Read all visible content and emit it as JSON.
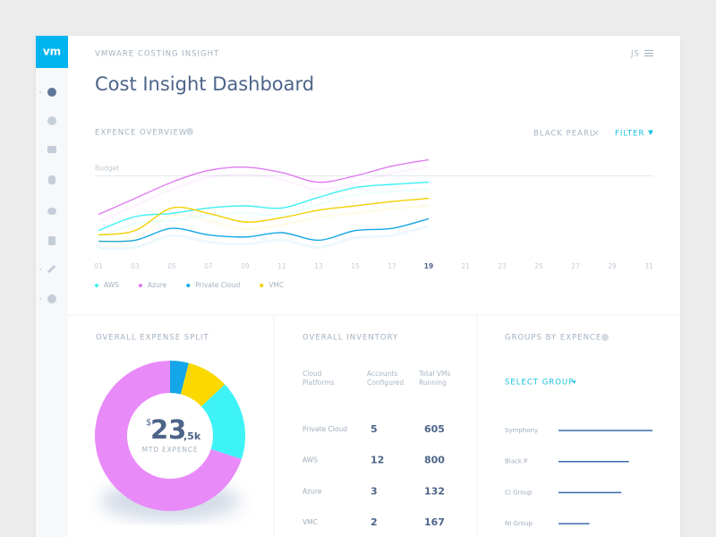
{
  "app": {
    "logo": "vm",
    "name": "VMWARE COSTING INSIGHT",
    "user": "JS",
    "title": "Cost Insight Dashboard"
  },
  "filters": {
    "tag": "BLACK PEARL",
    "button": "FILTER"
  },
  "inventory": {
    "title": "OVERALL INVENTORY",
    "columns": [
      "Cloud Platforms",
      "Accounts Configured",
      "Total VMs Running"
    ],
    "rows": [
      [
        "Private Cloud",
        5,
        605
      ],
      [
        "AWS",
        12,
        800
      ],
      [
        "Azure",
        3,
        132
      ],
      [
        "VMC",
        2,
        167
      ]
    ]
  },
  "chart_data": [
    {
      "type": "line",
      "title": "EXPENCE OVERVIEW",
      "x": [
        1,
        3,
        5,
        7,
        9,
        11,
        13,
        15,
        17,
        19
      ],
      "xlim": [
        1,
        31
      ],
      "xticks": [
        {
          "value": 1,
          "label": "01"
        },
        {
          "value": 3,
          "label": "03"
        },
        {
          "value": 5,
          "label": "05"
        },
        {
          "value": 7,
          "label": "07"
        },
        {
          "value": 9,
          "label": "09"
        },
        11,
        13,
        15,
        17,
        19,
        21,
        23,
        25,
        27,
        29,
        31
      ],
      "highlight_tick": 19,
      "ylim": [
        0,
        100
      ],
      "budget": {
        "label": "Budget",
        "value": 78
      },
      "series": [
        {
          "name": "AWS",
          "color": "#3ef0f2",
          "values": [
            27,
            40,
            43,
            48,
            50,
            48,
            58,
            67,
            70,
            72
          ]
        },
        {
          "name": "Azure",
          "color": "#e07cf0",
          "values": [
            42,
            57,
            72,
            83,
            86,
            81,
            72,
            78,
            87,
            93
          ]
        },
        {
          "name": "Private Cloud",
          "color": "#14a6e2",
          "values": [
            17,
            18,
            29,
            23,
            21,
            25,
            18,
            27,
            29,
            38
          ]
        },
        {
          "name": "VMC",
          "color": "#f2d000",
          "values": [
            23,
            27,
            48,
            43,
            35,
            39,
            46,
            50,
            54,
            57
          ]
        }
      ]
    },
    {
      "type": "pie",
      "title": "OVERALL EXPENSE SPLIT",
      "values": [
        4,
        9,
        17,
        70
      ],
      "colors": [
        "#14a6e8",
        "#fbd800",
        "#3ef3f5",
        "#e98af9"
      ],
      "center": {
        "currency": "$",
        "amount": "23",
        "suffix": ",5k",
        "label": "MTD EXPENCE"
      }
    },
    {
      "type": "hbar",
      "title": "GROUPS BY EXPENCE",
      "control": "SELECT GROUP",
      "categories": [
        "Symphony",
        "Black P",
        "CI Group",
        "NI Group"
      ],
      "values": [
        100,
        75,
        67,
        33
      ],
      "xlim": [
        0,
        100
      ],
      "color": "#3b6bb0"
    }
  ]
}
